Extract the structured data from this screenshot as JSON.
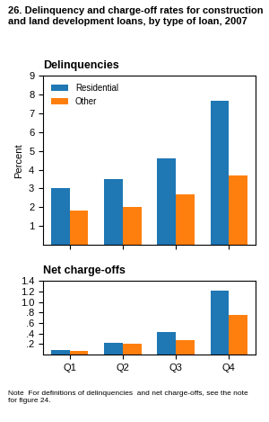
{
  "title": "26. Delinquency and charge-off rates for construction\nand land development loans, by type of loan, 2007",
  "note": "Note  For definitions of delinquencies  and net charge-offs, see the note\nfor figure 24.",
  "chart_data": [
    {
      "type": "bar",
      "title": "Delinquencies",
      "y_label": "Percent",
      "categories": [
        "Q1",
        "Q2",
        "Q3",
        "Q4"
      ],
      "series": [
        {
          "name": "Residential",
          "values": [
            3.0,
            3.5,
            4.6,
            7.7
          ]
        },
        {
          "name": "Other",
          "values": [
            1.8,
            2.0,
            2.7,
            3.7
          ]
        }
      ],
      "ylim": [
        0,
        9
      ],
      "yticks": [
        1,
        2,
        3,
        4,
        5,
        6,
        7,
        8,
        9
      ],
      "legend": "upper left",
      "tick_labels": "y"
    },
    {
      "type": "bar",
      "title": "Net charge-offs",
      "categories": [
        "Q1",
        "Q2",
        "Q3",
        "Q4"
      ],
      "series": [
        {
          "name": "Residential",
          "values": [
            0.08,
            0.22,
            0.43,
            1.22
          ]
        },
        {
          "name": "Other",
          "values": [
            0.07,
            0.2,
            0.27,
            0.75
          ]
        }
      ],
      "ylim": [
        0,
        1.4
      ],
      "yticks": [
        {
          "value": 0.2,
          "label": ".2"
        },
        {
          "value": 0.4,
          "label": ".4"
        },
        {
          "value": 0.6,
          "label": ".6"
        },
        {
          "value": 0.8,
          "label": ".8"
        },
        {
          "value": 1.0,
          "label": "1.0"
        },
        1.2,
        1.4
      ]
    }
  ]
}
